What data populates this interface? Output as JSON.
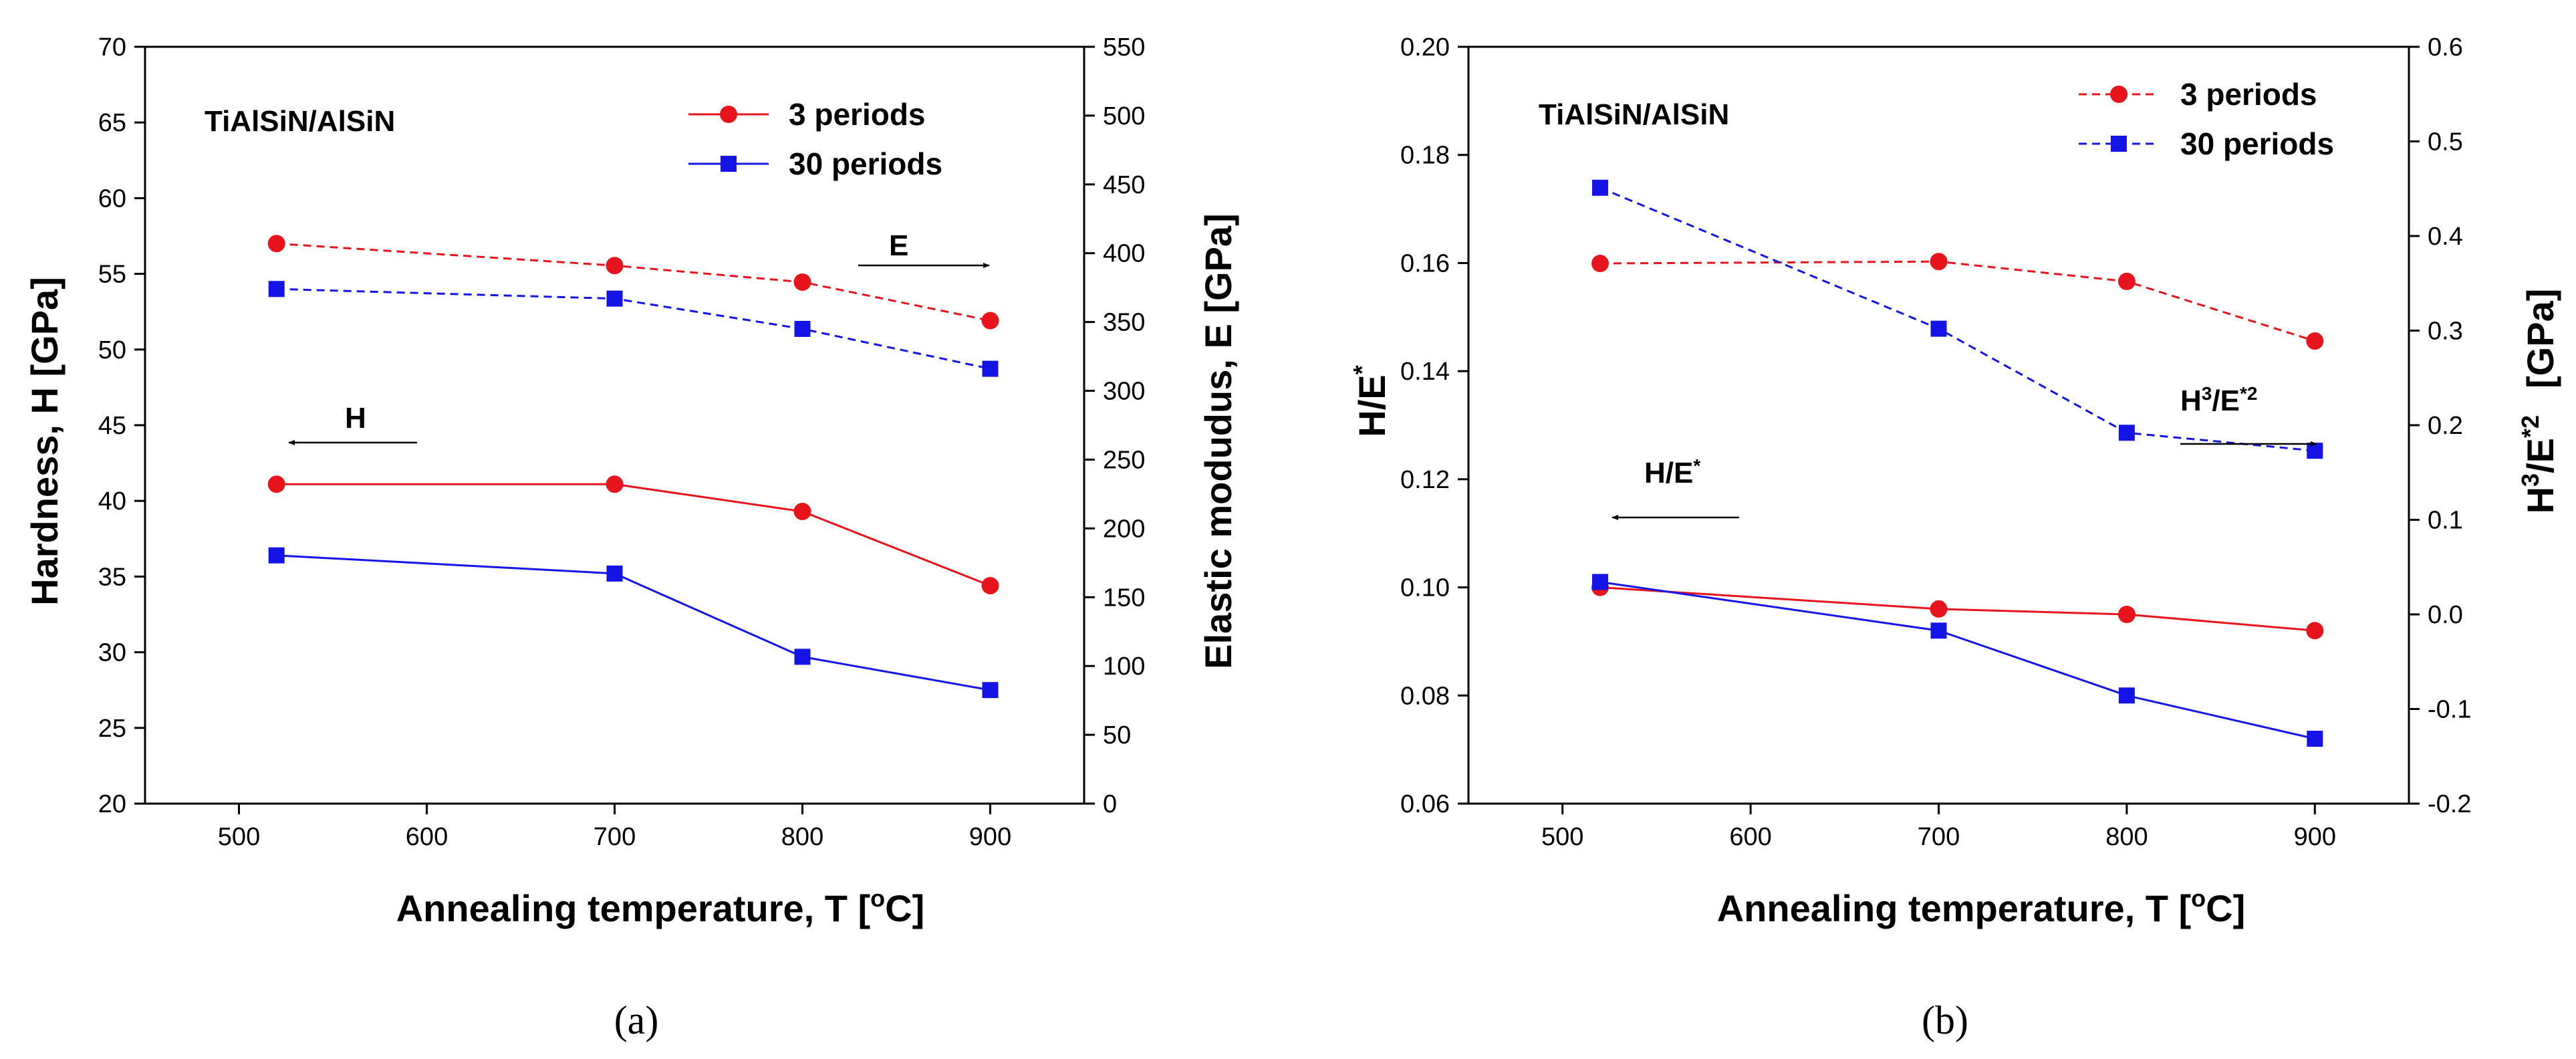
{
  "chart_data": [
    {
      "panel": "a",
      "caption": "(a)",
      "type": "line",
      "title": "TiAlSiN/AlSiN",
      "xlabel_main": "Annealing temperature,  T  [",
      "xlabel_sup": "o",
      "xlabel_end": "C]",
      "ylabel": "Hardness,  H  [GPa]",
      "y2label": "Elastic modudus,  E  [GPa]",
      "xlim": [
        450,
        950
      ],
      "ylim": [
        20,
        70
      ],
      "y2lim": [
        0,
        550
      ],
      "xticks": [
        "500",
        "600",
        "700",
        "800",
        "900"
      ],
      "yticks": [
        "20",
        "25",
        "30",
        "35",
        "40",
        "45",
        "50",
        "55",
        "60",
        "65",
        "70"
      ],
      "y2ticks": [
        "0",
        "50",
        "100",
        "150",
        "200",
        "250",
        "300",
        "350",
        "400",
        "450",
        "500",
        "550"
      ],
      "legend": [
        {
          "label": "3 periods",
          "color": "#e8141c",
          "marker": "circle",
          "dash": false
        },
        {
          "label": "30 periods",
          "color": "#1414e6",
          "marker": "square",
          "dash": false
        }
      ],
      "series": [
        {
          "name": "3 periods H",
          "color": "#e8141c",
          "marker": "circle",
          "dash": false,
          "axis": "left",
          "x": [
            520,
            700,
            800,
            900
          ],
          "y": [
            41.1,
            41.1,
            39.3,
            34.4
          ]
        },
        {
          "name": "30 periods H",
          "color": "#1414e6",
          "marker": "square",
          "dash": false,
          "axis": "left",
          "x": [
            520,
            700,
            800,
            900
          ],
          "y": [
            36.4,
            35.2,
            29.7,
            27.5
          ]
        },
        {
          "name": "3 periods E",
          "color": "#e8141c",
          "marker": "circle",
          "dash": true,
          "axis": "right",
          "x": [
            520,
            700,
            800,
            900
          ],
          "y": [
            407,
            391,
            379,
            351
          ]
        },
        {
          "name": "30 periods E",
          "color": "#1414e6",
          "marker": "square",
          "dash": true,
          "axis": "right",
          "x": [
            520,
            700,
            800,
            900
          ],
          "y": [
            374,
            367,
            345,
            316
          ]
        }
      ],
      "annotations": [
        {
          "text": "E",
          "direction": "right"
        },
        {
          "text": "H",
          "direction": "left"
        }
      ]
    },
    {
      "panel": "b",
      "caption": "(b)",
      "type": "line",
      "title": "TiAlSiN/AlSiN",
      "xlabel_main": "Annealing temperature,  T  [",
      "xlabel_sup": "o",
      "xlabel_end": "C]",
      "ylabel_main": "H/E",
      "ylabel_sup": "*",
      "y2label_a": "H",
      "y2label_sup1": "3",
      "y2label_b": "/E",
      "y2label_sup2": "*2",
      "y2label_unit": "[GPa]",
      "xlim": [
        450,
        950
      ],
      "ylim": [
        0.06,
        0.2
      ],
      "y2lim": [
        -0.2,
        0.6
      ],
      "xticks": [
        "500",
        "600",
        "700",
        "800",
        "900"
      ],
      "yticks": [
        "0.06",
        "0.08",
        "0.10",
        "0.12",
        "0.14",
        "0.16",
        "0.18",
        "0.20"
      ],
      "y2ticks": [
        "-0.2",
        "-0.1",
        "0.0",
        "0.1",
        "0.2",
        "0.3",
        "0.4",
        "0.5",
        "0.6"
      ],
      "legend": [
        {
          "label": "3 periods",
          "color": "#e8141c",
          "marker": "circle",
          "dash": true
        },
        {
          "label": "30 periods",
          "color": "#1414e6",
          "marker": "square",
          "dash": true
        }
      ],
      "series": [
        {
          "name": "3 periods H/E*",
          "color": "#e8141c",
          "marker": "circle",
          "dash": false,
          "axis": "left",
          "x": [
            520,
            700,
            800,
            900
          ],
          "y": [
            0.1,
            0.096,
            0.095,
            0.092
          ]
        },
        {
          "name": "30 periods H/E*",
          "color": "#1414e6",
          "marker": "square",
          "dash": false,
          "axis": "left",
          "x": [
            520,
            700,
            800,
            900
          ],
          "y": [
            0.101,
            0.092,
            0.08,
            0.072
          ]
        },
        {
          "name": "3 periods H3/E*2",
          "color": "#e8141c",
          "marker": "circle",
          "dash": true,
          "axis": "right",
          "x": [
            520,
            700,
            800,
            900
          ],
          "y": [
            0.371,
            0.373,
            0.352,
            0.289
          ]
        },
        {
          "name": "30 periods H3/E*2",
          "color": "#1414e6",
          "marker": "square",
          "dash": true,
          "axis": "right",
          "x": [
            520,
            700,
            800,
            900
          ],
          "y": [
            0.451,
            0.302,
            0.192,
            0.173
          ]
        }
      ],
      "annotations": [
        {
          "text_a": "H",
          "sup1": "3",
          "text_b": "/E",
          "sup2": "*2",
          "direction": "right"
        },
        {
          "text_a": "H/E",
          "sup1": "*",
          "direction": "left"
        }
      ]
    }
  ]
}
